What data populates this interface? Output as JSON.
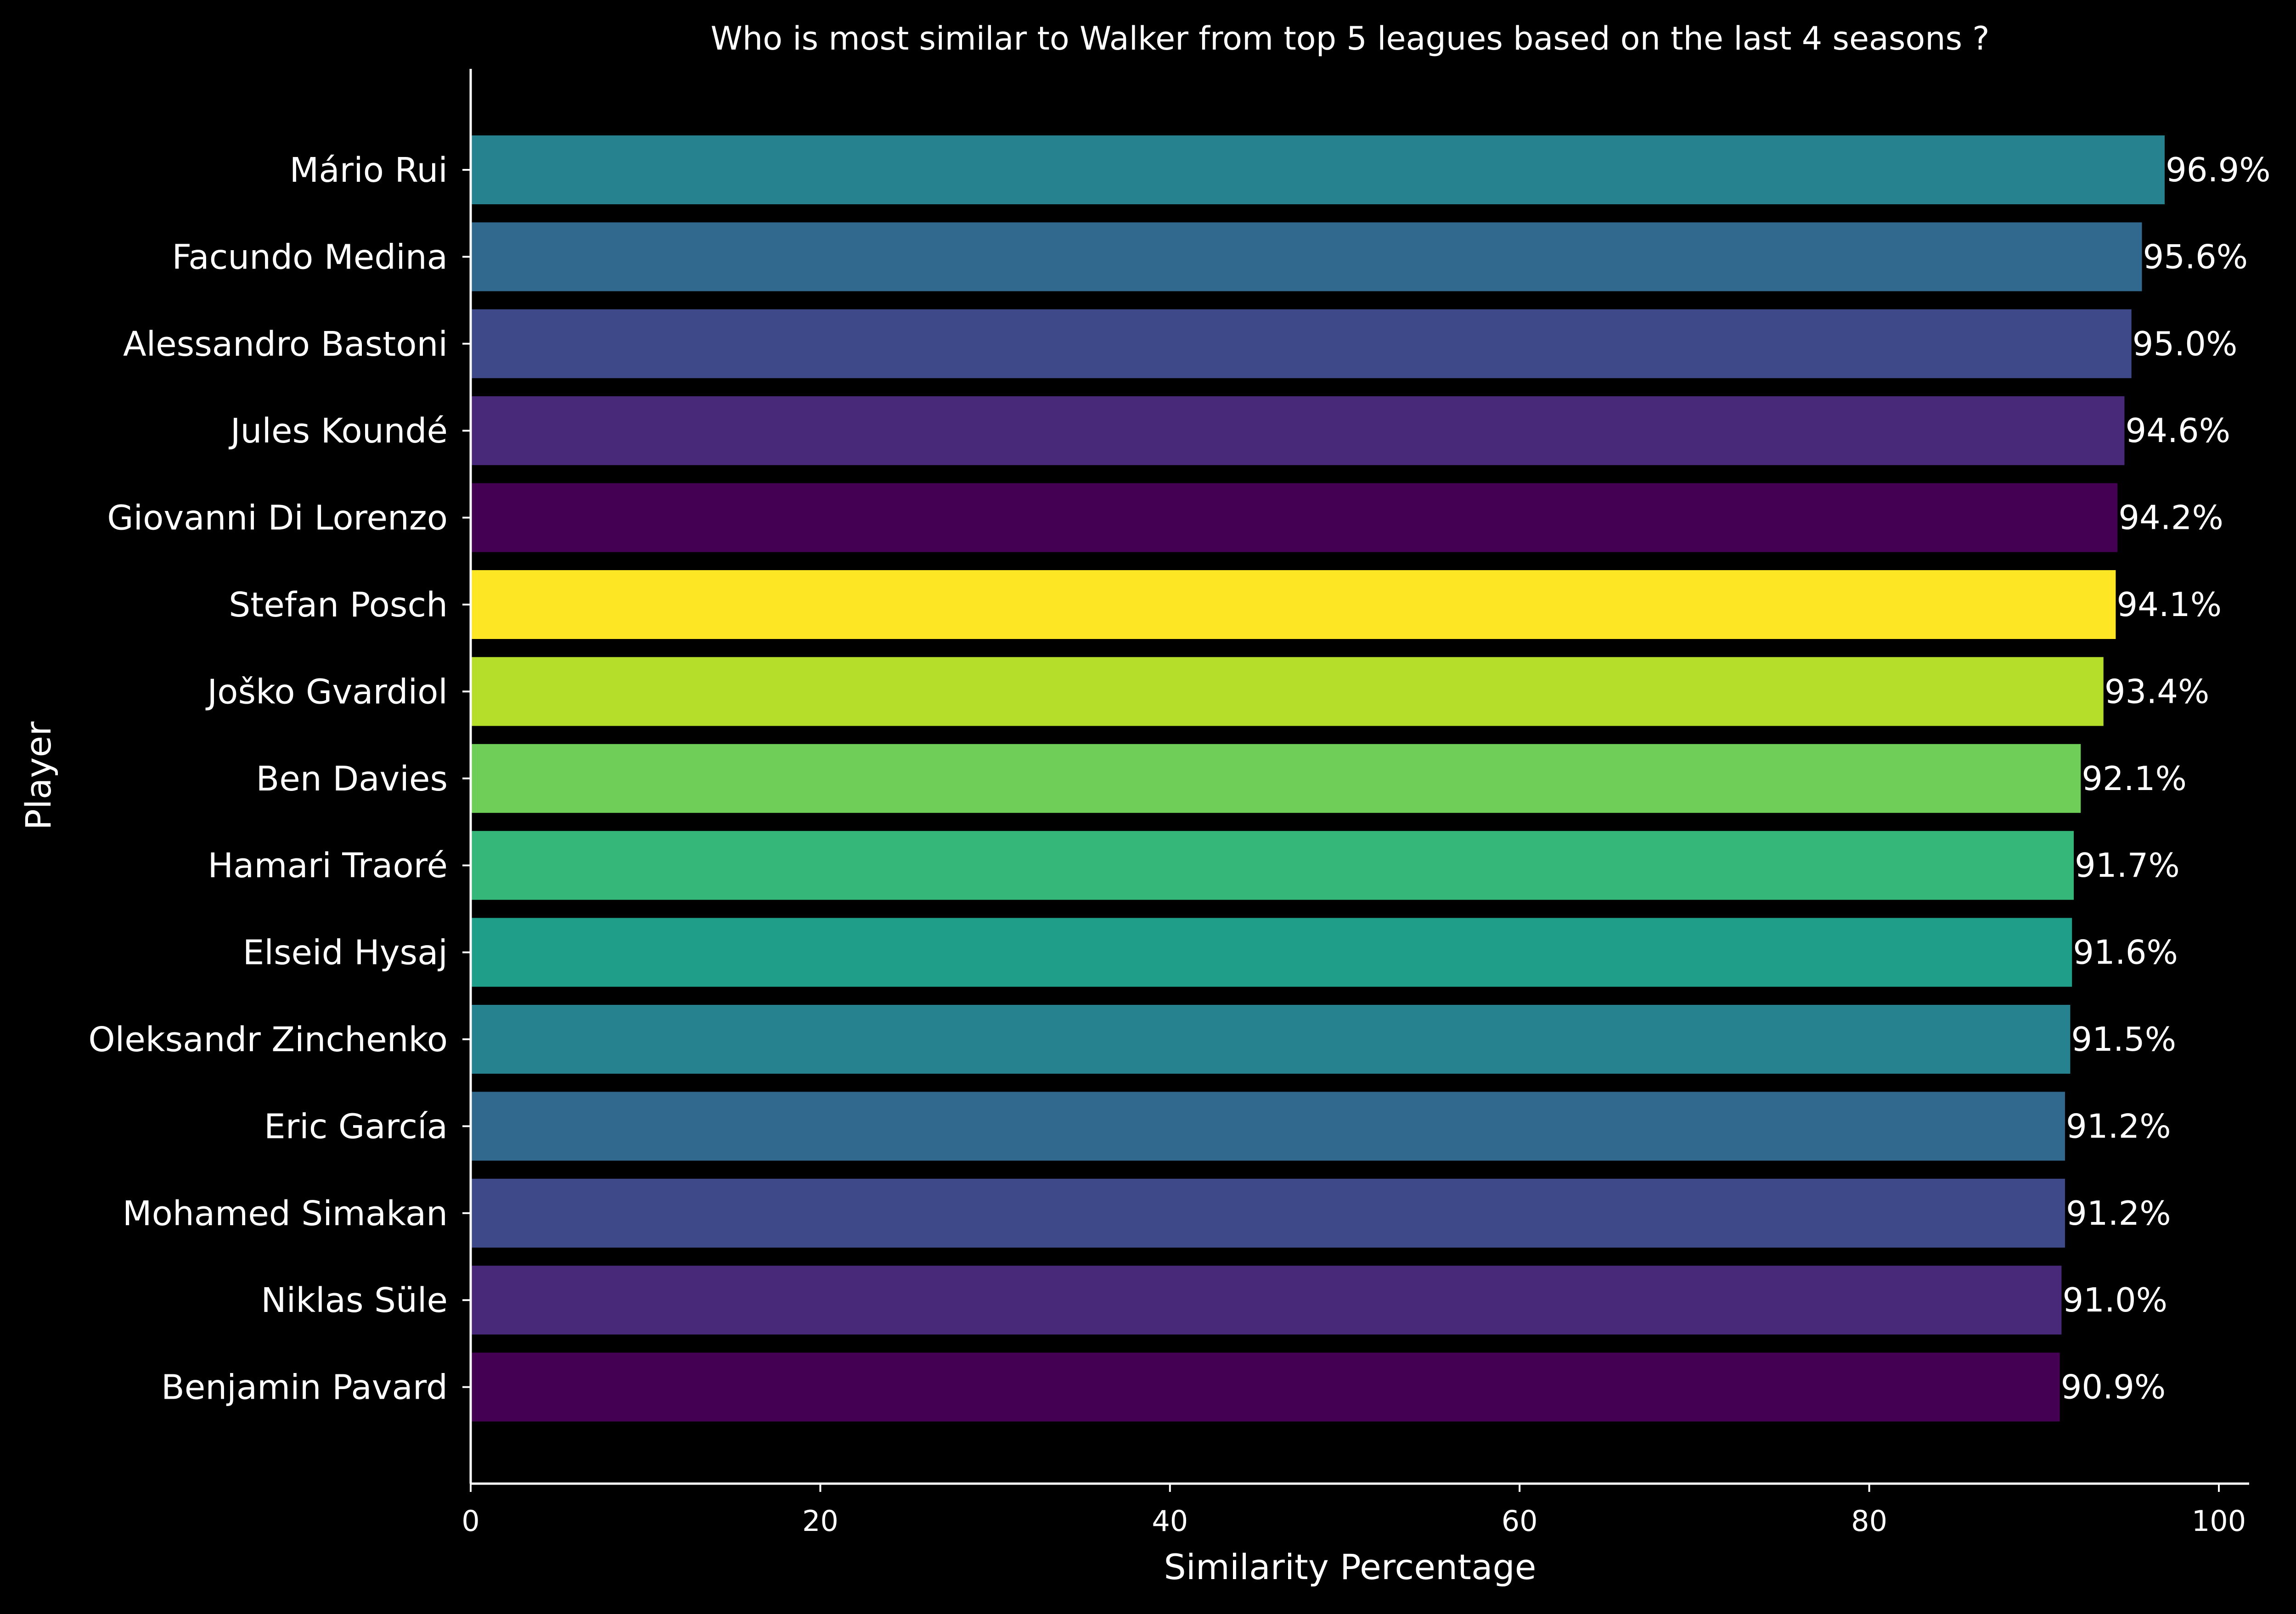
{
  "chart_data": {
    "type": "bar",
    "orientation": "horizontal",
    "title": "Who is most similar to Walker from top 5 leagues based on the last 4 seasons ?",
    "xlabel": "Similarity Percentage",
    "ylabel": "Player",
    "xlim": [
      0,
      100
    ],
    "xticks": [
      0,
      20,
      40,
      60,
      80,
      100
    ],
    "grid": false,
    "background": "#000000",
    "categories": [
      "Mário Rui",
      "Facundo Medina",
      "Alessandro Bastoni",
      "Jules Koundé",
      "Giovanni Di Lorenzo",
      "Stefan Posch",
      "Joško Gvardiol",
      "Ben Davies",
      "Hamari Traoré",
      "Elseid Hysaj",
      "Oleksandr Zinchenko",
      "Eric García",
      "Mohamed Simakan",
      "Niklas Süle",
      "Benjamin Pavard"
    ],
    "values": [
      96.9,
      95.6,
      95.0,
      94.6,
      94.2,
      94.1,
      93.4,
      92.1,
      91.7,
      91.6,
      91.5,
      91.2,
      91.2,
      91.0,
      90.9
    ],
    "data_labels": [
      "96.9%",
      "95.6%",
      "95.0%",
      "94.6%",
      "94.2%",
      "94.1%",
      "93.4%",
      "92.1%",
      "91.7%",
      "91.6%",
      "91.5%",
      "91.2%",
      "91.2%",
      "91.0%",
      "90.9%"
    ],
    "colors": [
      "#26828e",
      "#31688e",
      "#3e4989",
      "#482878",
      "#440154",
      "#fde725",
      "#b5de2b",
      "#6ece58",
      "#35b779",
      "#1f9e89",
      "#26828e",
      "#31688e",
      "#3e4989",
      "#482878",
      "#440154"
    ]
  }
}
